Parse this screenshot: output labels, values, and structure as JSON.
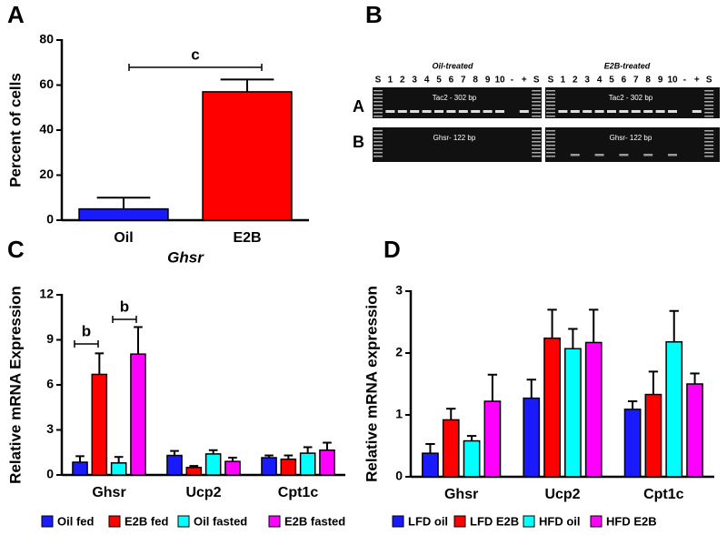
{
  "chart_data": [
    {
      "type": "bar",
      "panel_label": "A",
      "y_label": "Percent of cells",
      "x_label": "Ghsr",
      "categories": [
        "Oil",
        "E2B"
      ],
      "values": [
        5,
        57
      ],
      "errors": [
        5,
        5.5
      ],
      "colors": [
        "#1a1aff",
        "#ff0000"
      ],
      "ylim": [
        0,
        80
      ],
      "yticks": [
        0,
        20,
        40,
        60,
        80
      ],
      "annotations": [
        "c"
      ]
    },
    {
      "type": "grouped_bar",
      "panel_label": "C",
      "y_label": "Relative mRNA Expression",
      "categories": [
        "Ghsr",
        "Ucp2",
        "Cpt1c"
      ],
      "ylim": [
        0,
        12
      ],
      "yticks": [
        0,
        3,
        6,
        9,
        12
      ],
      "annotations": [
        "b",
        "b"
      ],
      "series": [
        {
          "name": "Oil fed",
          "color": "#1a1aff",
          "values": [
            0.85,
            1.3,
            1.15
          ],
          "errors": [
            0.4,
            0.3,
            0.15
          ]
        },
        {
          "name": "E2B fed",
          "color": "#ff0000",
          "values": [
            6.7,
            0.5,
            1.05
          ],
          "errors": [
            1.4,
            0.1,
            0.25
          ]
        },
        {
          "name": "Oil fasted",
          "color": "#00ffff",
          "values": [
            0.8,
            1.4,
            1.45
          ],
          "errors": [
            0.4,
            0.25,
            0.4
          ]
        },
        {
          "name": "E2B fasted",
          "color": "#ff00ff",
          "values": [
            8.05,
            0.9,
            1.65
          ],
          "errors": [
            1.8,
            0.25,
            0.5
          ]
        }
      ]
    },
    {
      "type": "grouped_bar",
      "panel_label": "D",
      "y_label": "Relative mRNA expression",
      "categories": [
        "Ghsr",
        "Ucp2",
        "Cpt1c"
      ],
      "ylim": [
        0,
        3
      ],
      "yticks": [
        0,
        1,
        2,
        3
      ],
      "series": [
        {
          "name": "LFD oil",
          "color": "#1a1aff",
          "values": [
            0.38,
            1.27,
            1.09
          ],
          "errors": [
            0.15,
            0.3,
            0.13
          ]
        },
        {
          "name": "LFD E2B",
          "color": "#ff0000",
          "values": [
            0.92,
            2.24,
            1.33
          ],
          "errors": [
            0.18,
            0.46,
            0.37
          ]
        },
        {
          "name": "HFD oil",
          "color": "#00ffff",
          "values": [
            0.58,
            2.07,
            2.18
          ],
          "errors": [
            0.08,
            0.32,
            0.5
          ]
        },
        {
          "name": "HFD E2B",
          "color": "#ff00ff",
          "values": [
            1.22,
            2.17,
            1.5
          ],
          "errors": [
            0.43,
            0.53,
            0.17
          ]
        }
      ]
    }
  ],
  "gel": {
    "panel_label": "B",
    "groups": [
      "Oil-treated",
      "E2B-treated"
    ],
    "lanes": [
      "S",
      "1",
      "2",
      "3",
      "4",
      "5",
      "6",
      "7",
      "8",
      "9",
      "10",
      "-",
      "+",
      "S"
    ],
    "rows": [
      "A",
      "B"
    ],
    "bands": [
      "Tac2 - 302 bp",
      "Ghsr- 122 bp"
    ]
  }
}
